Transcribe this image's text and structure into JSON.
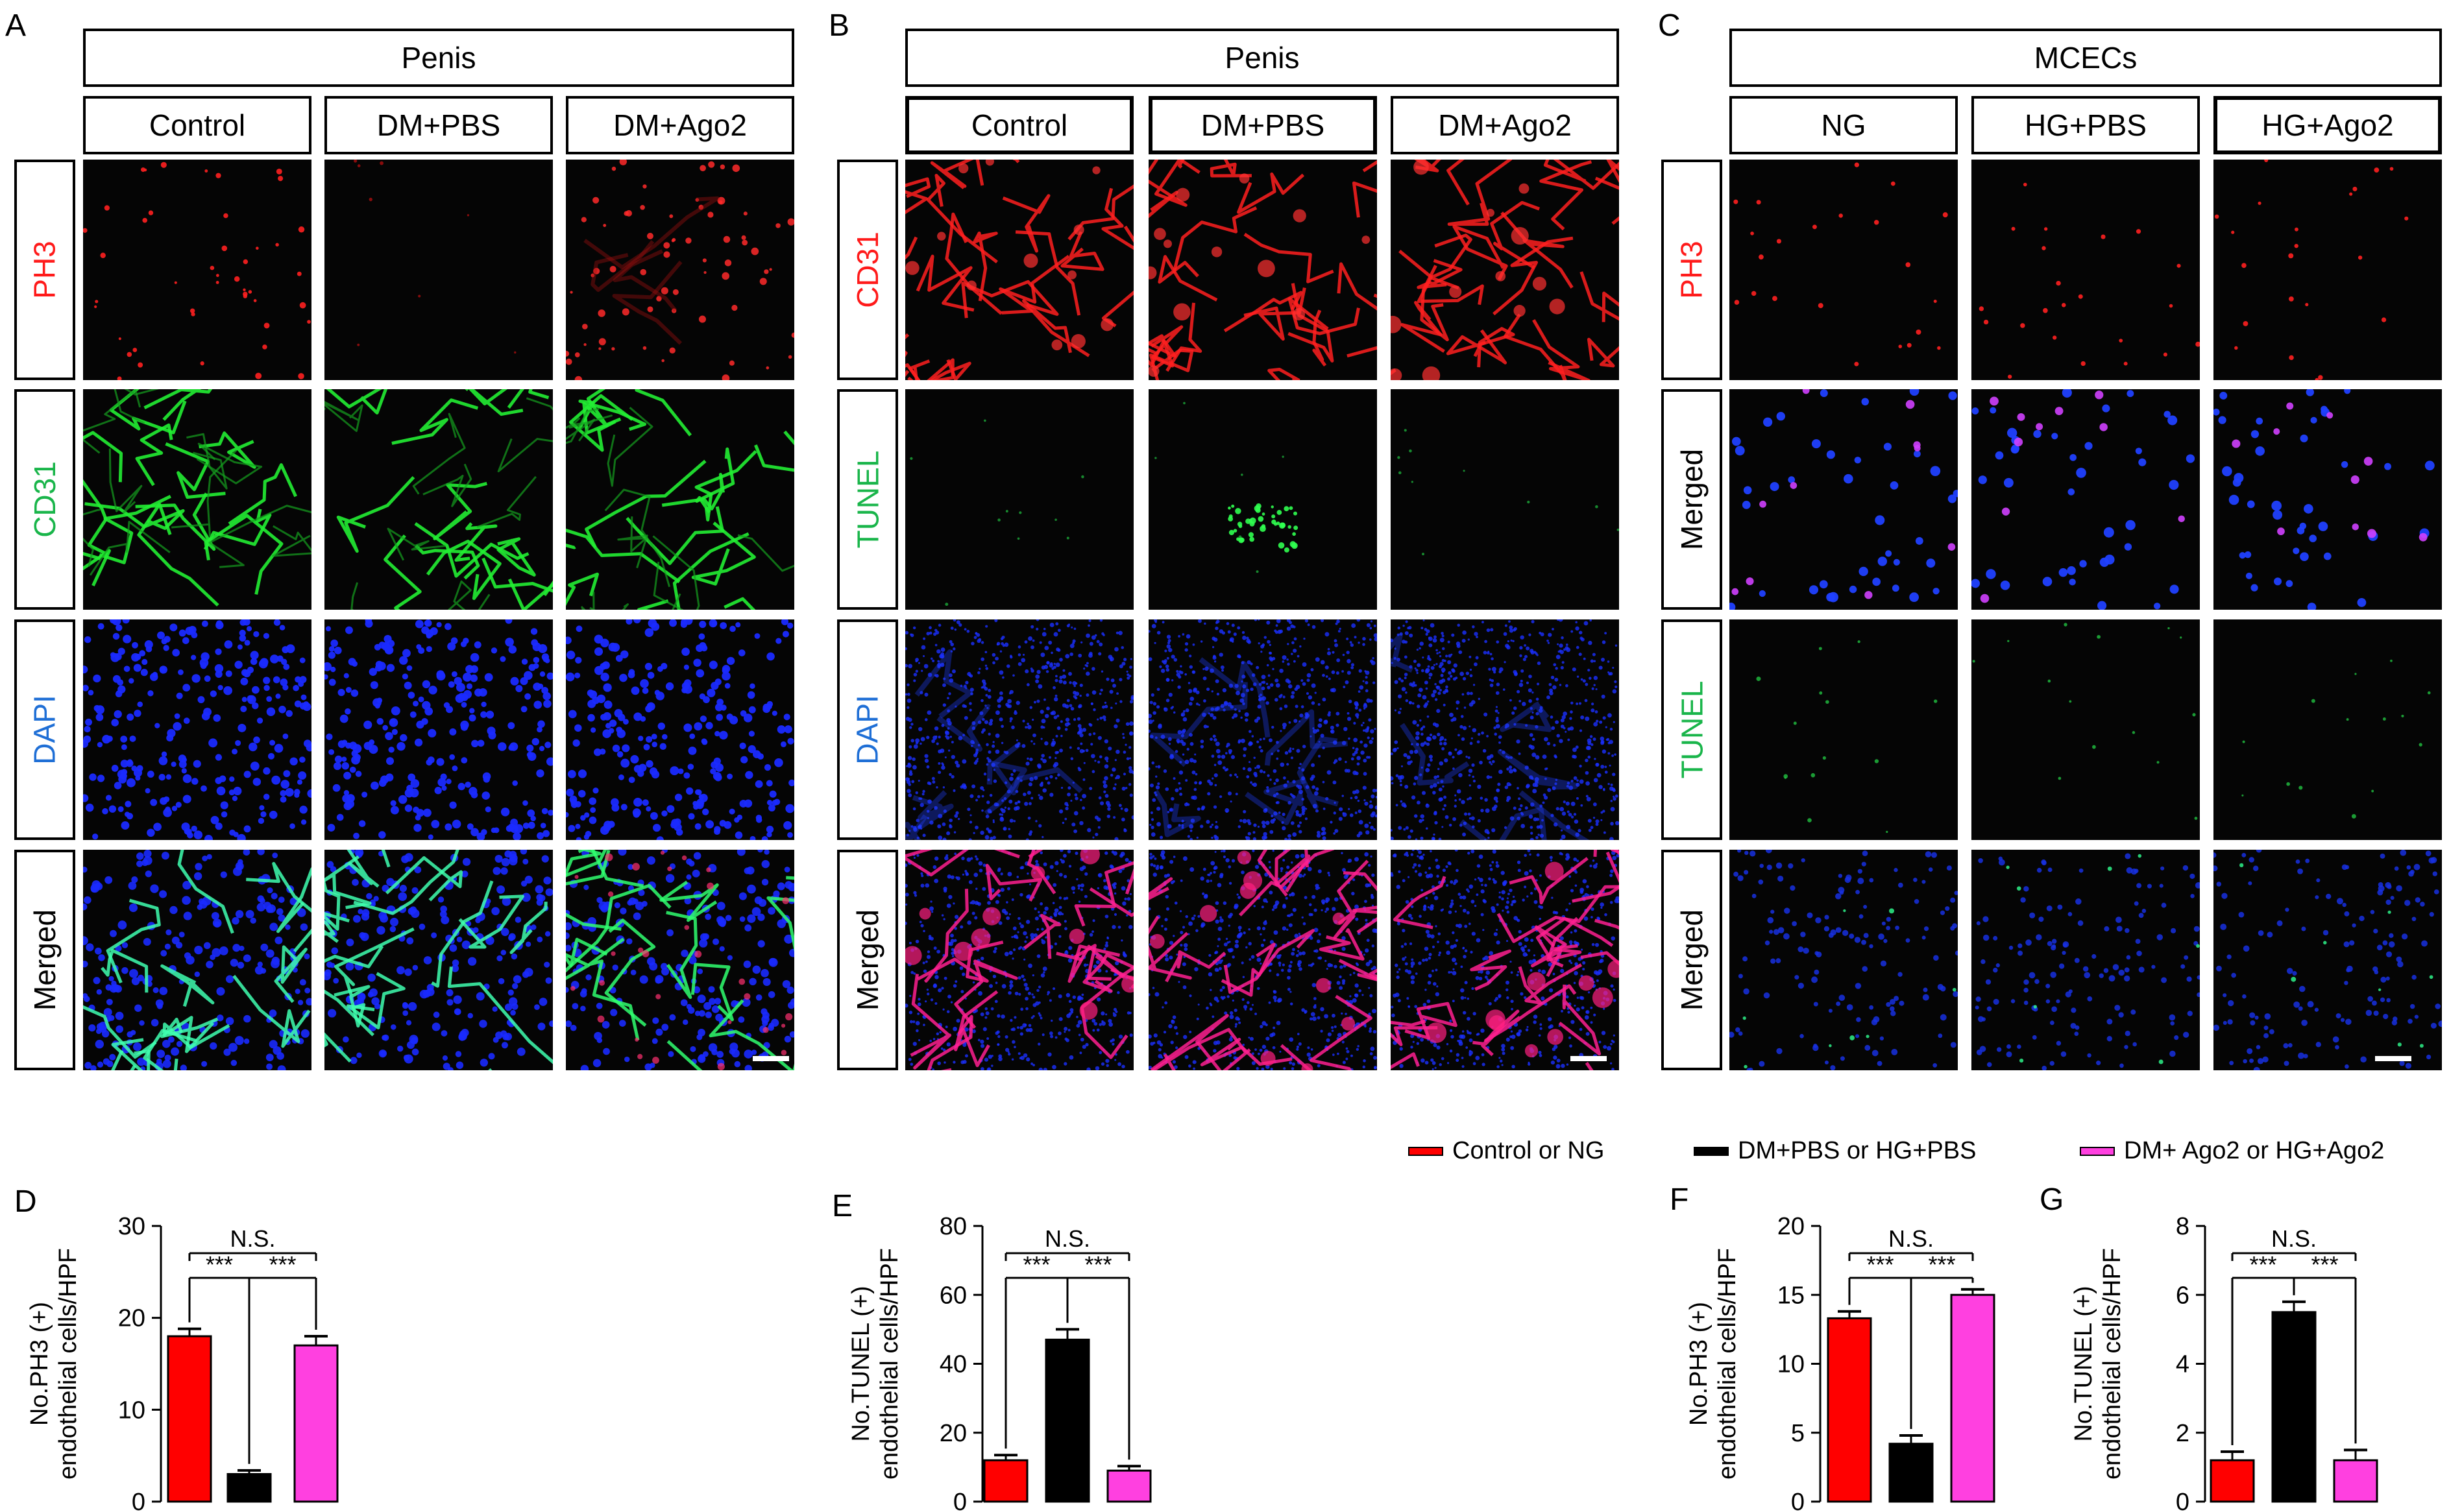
{
  "figure_a": {
    "letter": "A",
    "header": "Penis",
    "columns": [
      "Control",
      "DM+PBS",
      "DM+Ago2"
    ],
    "rows": [
      {
        "label": "PH3",
        "color": "#ff1a1a",
        "panels": [
          "red-sparse",
          "red-faint",
          "red-dense"
        ]
      },
      {
        "label": "CD31",
        "color": "#19b54a",
        "panels": [
          "green-vessels",
          "green-vessels",
          "green-vessels"
        ]
      },
      {
        "label": "DAPI",
        "color": "#1f6fd6",
        "panels": [
          "blue-nuclei",
          "blue-nuclei",
          "blue-nuclei"
        ]
      },
      {
        "label": "Merged",
        "color": "#000000",
        "panels": [
          "merged-green",
          "merged-green",
          "merged-green-red"
        ]
      }
    ]
  },
  "figure_b": {
    "letter": "B",
    "header": "Penis",
    "columns": [
      "Control",
      "DM+PBS",
      "DM+Ago2"
    ],
    "rows": [
      {
        "label": "CD31",
        "color": "#ff1a1a",
        "panels": [
          "red-vessels",
          "red-vessels",
          "red-vessels"
        ]
      },
      {
        "label": "TUNEL",
        "color": "#19b54a",
        "panels": [
          "green-faint",
          "green-cluster",
          "green-faint"
        ]
      },
      {
        "label": "DAPI",
        "color": "#1f6fd6",
        "panels": [
          "blue-tissue",
          "blue-tissue",
          "blue-tissue"
        ]
      },
      {
        "label": "Merged",
        "color": "#000000",
        "panels": [
          "merged-magenta",
          "merged-magenta",
          "merged-magenta"
        ]
      }
    ]
  },
  "figure_c": {
    "letter": "C",
    "header": "MCECs",
    "columns": [
      "NG",
      "HG+PBS",
      "HG+Ago2"
    ],
    "rows": [
      {
        "label": "PH3",
        "color": "#ff1a1a",
        "panels": [
          "red-dots",
          "red-dots",
          "red-dots"
        ]
      },
      {
        "label": "Merged",
        "color": "#000000",
        "panels": [
          "blue-cells",
          "blue-cells",
          "blue-cells"
        ]
      },
      {
        "label": "TUNEL",
        "color": "#19b54a",
        "panels": [
          "green-dots",
          "green-dots",
          "green-dots"
        ]
      },
      {
        "label": "Merged",
        "color": "#000000",
        "panels": [
          "blue-dense",
          "blue-dense",
          "blue-dense"
        ]
      }
    ]
  },
  "legend": [
    {
      "label": "Control or NG",
      "color": "#ff0000"
    },
    {
      "label": "DM+PBS or HG+PBS",
      "color": "#000000"
    },
    {
      "label": "DM+ Ago2 or HG+Ago2",
      "color": "#ff40e0"
    }
  ],
  "chart_data": [
    {
      "type": "bar",
      "letter": "D",
      "ylabel_line1": "No.PH3 (+)",
      "ylabel_line2": "endothelial cells/HPF",
      "ylim": [
        0,
        30
      ],
      "yticks": [
        "0",
        "10",
        "20",
        "30"
      ],
      "values": [
        18,
        3,
        17
      ],
      "errors": [
        0.8,
        0.4,
        1.0
      ],
      "colors": [
        "#ff0000",
        "#000000",
        "#ff40e0"
      ],
      "sig_left": "***",
      "sig_right": "***",
      "sig_top": "N.S."
    },
    {
      "type": "bar",
      "letter": "E",
      "ylabel_line1": "No.TUNEL (+)",
      "ylabel_line2": "endothelial cells/HPF",
      "ylim": [
        0,
        80
      ],
      "yticks": [
        "0",
        "20",
        "40",
        "60",
        "80"
      ],
      "values": [
        12,
        47,
        9
      ],
      "errors": [
        1.5,
        3.0,
        1.3
      ],
      "colors": [
        "#ff0000",
        "#000000",
        "#ff40e0"
      ],
      "sig_left": "***",
      "sig_right": "***",
      "sig_top": "N.S."
    },
    {
      "type": "bar",
      "letter": "F",
      "ylabel_line1": "No.PH3 (+)",
      "ylabel_line2": "endothelial cells/HPF",
      "ylim": [
        0,
        20
      ],
      "yticks": [
        "0",
        "5",
        "10",
        "15",
        "20"
      ],
      "values": [
        13.3,
        4.2,
        15.0
      ],
      "errors": [
        0.5,
        0.6,
        0.4
      ],
      "colors": [
        "#ff0000",
        "#000000",
        "#ff40e0"
      ],
      "sig_left": "***",
      "sig_right": "***",
      "sig_top": "N.S."
    },
    {
      "type": "bar",
      "letter": "G",
      "ylabel_line1": "No.TUNEL (+)",
      "ylabel_line2": "endothelial cells/HPF",
      "ylim": [
        0,
        8
      ],
      "yticks": [
        "0",
        "2",
        "4",
        "6",
        "8"
      ],
      "values": [
        1.2,
        5.5,
        1.2
      ],
      "errors": [
        0.25,
        0.3,
        0.3
      ],
      "colors": [
        "#ff0000",
        "#000000",
        "#ff40e0"
      ],
      "sig_left": "***",
      "sig_right": "***",
      "sig_top": "N.S."
    }
  ]
}
